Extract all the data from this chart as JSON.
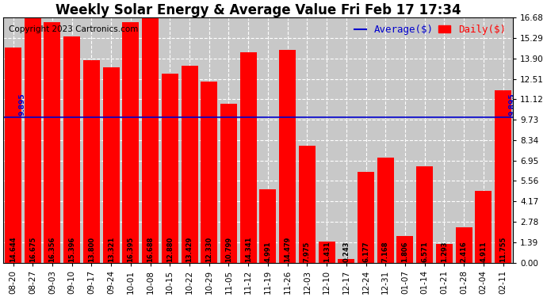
{
  "title": "Weekly Solar Energy & Average Value Fri Feb 17 17:34",
  "copyright": "Copyright 2023 Cartronics.com",
  "categories": [
    "08-20",
    "08-27",
    "09-03",
    "09-10",
    "09-17",
    "09-24",
    "10-01",
    "10-08",
    "10-15",
    "10-22",
    "10-29",
    "11-05",
    "11-12",
    "11-19",
    "11-26",
    "12-03",
    "12-10",
    "12-17",
    "12-24",
    "12-31",
    "01-07",
    "01-14",
    "01-21",
    "01-28",
    "02-04",
    "02-11"
  ],
  "values": [
    14.644,
    16.675,
    16.356,
    15.396,
    13.8,
    13.321,
    16.395,
    16.688,
    12.88,
    13.429,
    12.33,
    10.799,
    14.341,
    4.991,
    14.479,
    7.975,
    1.431,
    0.243,
    6.177,
    7.168,
    1.806,
    6.571,
    1.293,
    2.416,
    4.911,
    11.755
  ],
  "value_labels": [
    "14.644",
    "16.675",
    "16.356",
    "15.396",
    "13.800",
    "13.321",
    "16.395",
    "16.688",
    "12.880",
    "13.429",
    "12.330",
    "10.799",
    "14.341",
    "4.991",
    "14.479",
    "7.975",
    "1.431",
    "0.243",
    "6.177",
    "7.168",
    "1.806",
    "6.571",
    "1.293",
    "2.416",
    "4.911",
    "11.755"
  ],
  "average_value": 9.895,
  "average_label": "9.895",
  "bar_color": "#ff0000",
  "average_line_color": "#0000cd",
  "background_color": "#c8c8c8",
  "plot_bg_color": "#c8c8c8",
  "outer_bg_color": "#ffffff",
  "grid_color": "#ffffff",
  "ylim": [
    0,
    16.68
  ],
  "yticks": [
    0.0,
    1.39,
    2.78,
    4.17,
    5.56,
    6.95,
    8.34,
    9.73,
    11.12,
    12.51,
    13.9,
    15.29,
    16.68
  ],
  "legend_average_label": "Average($)",
  "legend_daily_label": "Daily($)",
  "legend_average_color": "#0000cd",
  "legend_daily_color": "#ff0000",
  "title_fontsize": 12,
  "copyright_fontsize": 7.5,
  "tick_fontsize": 7.5,
  "bar_label_fontsize": 6,
  "legend_fontsize": 9
}
